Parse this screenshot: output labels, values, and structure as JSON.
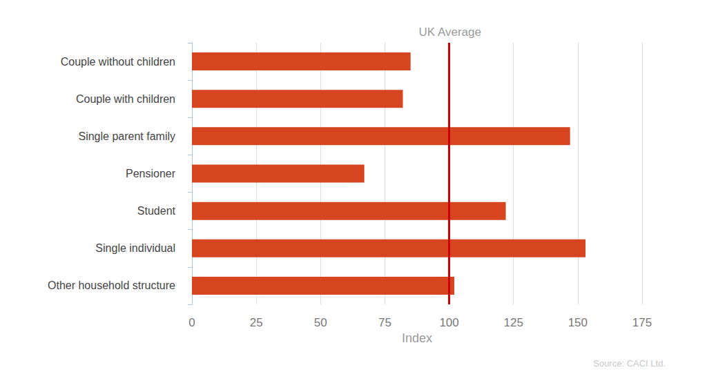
{
  "chart_data": {
    "type": "bar",
    "orientation": "horizontal",
    "categories": [
      "Couple without children",
      "Couple with children",
      "Single parent family",
      "Pensioner",
      "Student",
      "Single individual",
      "Other household structure"
    ],
    "values": [
      85,
      82,
      147,
      67,
      122,
      153,
      102
    ],
    "color": "#d64520",
    "xlabel": "Index",
    "xlim": [
      0,
      175
    ],
    "xticks": [
      0,
      25,
      50,
      75,
      100,
      125,
      150,
      175
    ],
    "grid": true,
    "annotations": [
      {
        "text": "UK Average",
        "x": 100,
        "color": "#cc0000"
      }
    ],
    "source": "Source: CACI Ltd."
  }
}
